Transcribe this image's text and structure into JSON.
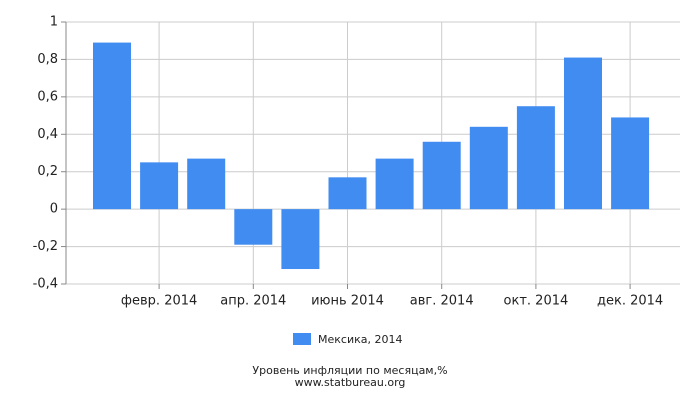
{
  "chart_data": {
    "type": "bar",
    "title": "Уровень инфляции по месяцам,%",
    "source": "www.statbureau.org",
    "categories": [
      null,
      "февр. 2014",
      null,
      "апр. 2014",
      null,
      "июнь 2014",
      null,
      "авг. 2014",
      null,
      "окт. 2014",
      null,
      "дек. 2014"
    ],
    "series": [
      {
        "name": "Мексика, 2014",
        "color": "#418cf0",
        "values": [
          0.89,
          0.25,
          0.27,
          -0.19,
          -0.32,
          0.17,
          0.27,
          0.36,
          0.44,
          0.55,
          0.81,
          0.49
        ]
      }
    ],
    "ylim": [
      -0.4,
      1
    ],
    "yticks": [
      {
        "value": -0.4,
        "label": "-0,4"
      },
      {
        "value": -0.2,
        "label": "-0,2"
      },
      0,
      {
        "value": 0.2,
        "label": "0,2"
      },
      {
        "value": 0.4,
        "label": "0,4"
      },
      {
        "value": 0.6,
        "label": "0,6"
      },
      {
        "value": 0.8,
        "label": "0,8"
      },
      1
    ],
    "grid": true
  }
}
